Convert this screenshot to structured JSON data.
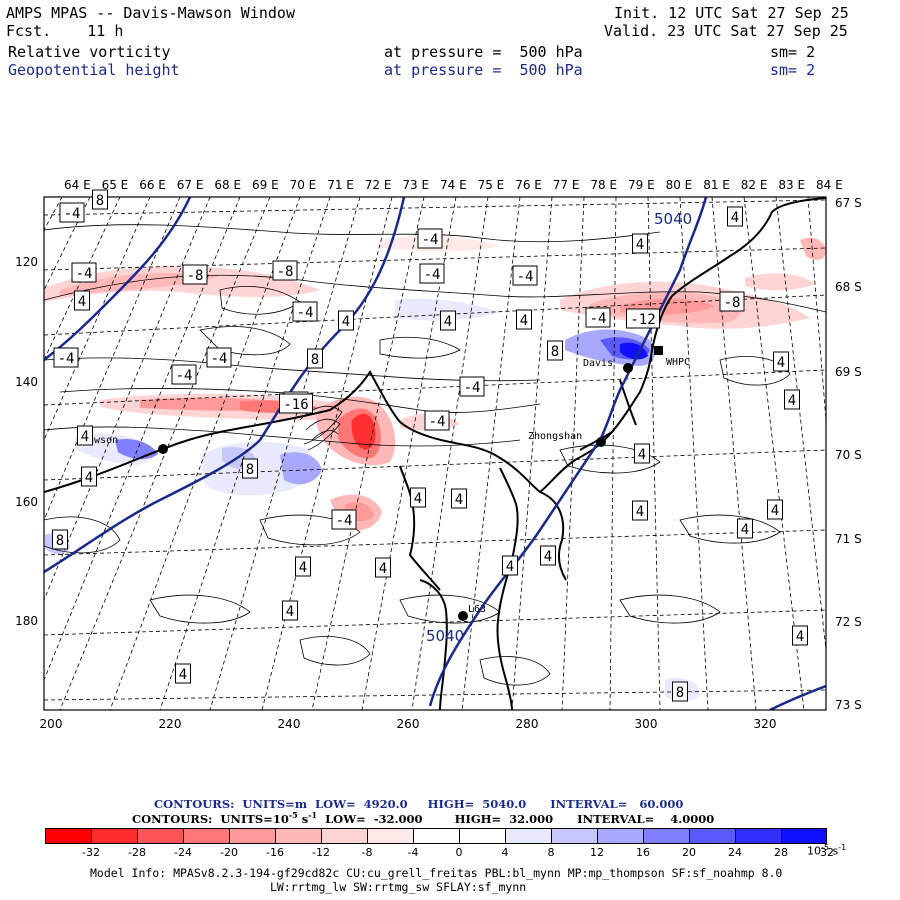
{
  "header": {
    "title": "AMPS MPAS -- Davis-Mawson Window",
    "fcst": "Fcst.    11 h",
    "init": "Init. 12 UTC Sat 27 Sep 25",
    "valid": "Valid. 23 UTC Sat 27 Sep 25",
    "field1": "Relative vorticity",
    "field1_level": "at pressure =  500 hPa",
    "field1_sm": "sm= 2",
    "field2": "Geopotential height",
    "field2_level": "at pressure =  500 hPa",
    "field2_sm": "sm= 2"
  },
  "map": {
    "lon_labels": [
      "64 E",
      "65 E",
      "66 E",
      "67 E",
      "68 E",
      "69 E",
      "70 E",
      "71 E",
      "72 E",
      "73 E",
      "74 E",
      "75 E",
      "76 E",
      "77 E",
      "78 E",
      "79 E",
      "80 E",
      "81 E",
      "82 E",
      "83 E",
      "84 E"
    ],
    "lat_labels": [
      "67 S",
      "68 S",
      "69 S",
      "70 S",
      "71 S",
      "72 S",
      "73 S"
    ],
    "x_ticks": [
      "200",
      "220",
      "240",
      "260",
      "280",
      "300",
      "320"
    ],
    "y_ticks": [
      "120",
      "140",
      "160",
      "180"
    ],
    "stations": [
      "Mawson",
      "Davis",
      "WHPC",
      "Zhongshan",
      "L63"
    ],
    "height_labels": [
      "5040",
      "5040"
    ],
    "contour_labels": [
      "-4",
      "-4",
      "-4",
      "-4",
      "-4",
      "-4",
      "-4",
      "-4",
      "-4",
      "-4",
      "-4",
      "-4",
      "-4",
      "-4",
      "-8",
      "-8",
      "-8",
      "-12",
      "-16",
      "4",
      "4",
      "4",
      "4",
      "4",
      "4",
      "4",
      "4",
      "4",
      "4",
      "4",
      "4",
      "4",
      "4",
      "4",
      "4",
      "4",
      "4",
      "4",
      "4",
      "4",
      "4",
      "4",
      "8",
      "8",
      "8",
      "8",
      "8",
      "8"
    ]
  },
  "legend": {
    "contours1": "CONTOURS:  UNITS=m  LOW=  4920.0     HIGH=  5040.0      INTERVAL=   60.000",
    "contours2_a": "CONTOURS:  UNITS=10",
    "contours2_sup": "-5",
    "contours2_b": " s",
    "contours2_sup2": "-1",
    "contours2_c": "  LOW=  -32.000        HIGH=  32.000      INTERVAL=    4.0000",
    "colorbar_labels": [
      "-32",
      "-28",
      "-24",
      "-20",
      "-16",
      "-12",
      "-8",
      "-4",
      "0",
      "4",
      "8",
      "12",
      "16",
      "20",
      "24",
      "28",
      "32"
    ],
    "colorbar_unit": "10",
    "colorbar_unit_sup": "-5",
    "colorbar_unit_s": "s",
    "colorbar_unit_sup2": "-1",
    "colorbar_colors": [
      "#ff0000",
      "#ff2c2c",
      "#ff5555",
      "#ff7777",
      "#ff9a9a",
      "#ffb8b8",
      "#ffd4d4",
      "#ffeaea",
      "#ffffff",
      "#ffffff",
      "#eaeaff",
      "#c8c8ff",
      "#a8a8ff",
      "#8080ff",
      "#5a5aff",
      "#3030ff",
      "#1010ff"
    ]
  },
  "model_info": {
    "line1": "Model Info: MPASv8.2.3-194-gf29cd82c CU:cu_grell_freitas PBL:bl_mynn MP:mp_thompson SF:sf_noahmp 8.0",
    "line2": "LW:rrtmg_lw SW:rrtmg_sw SFLAY:sf_mynn"
  }
}
